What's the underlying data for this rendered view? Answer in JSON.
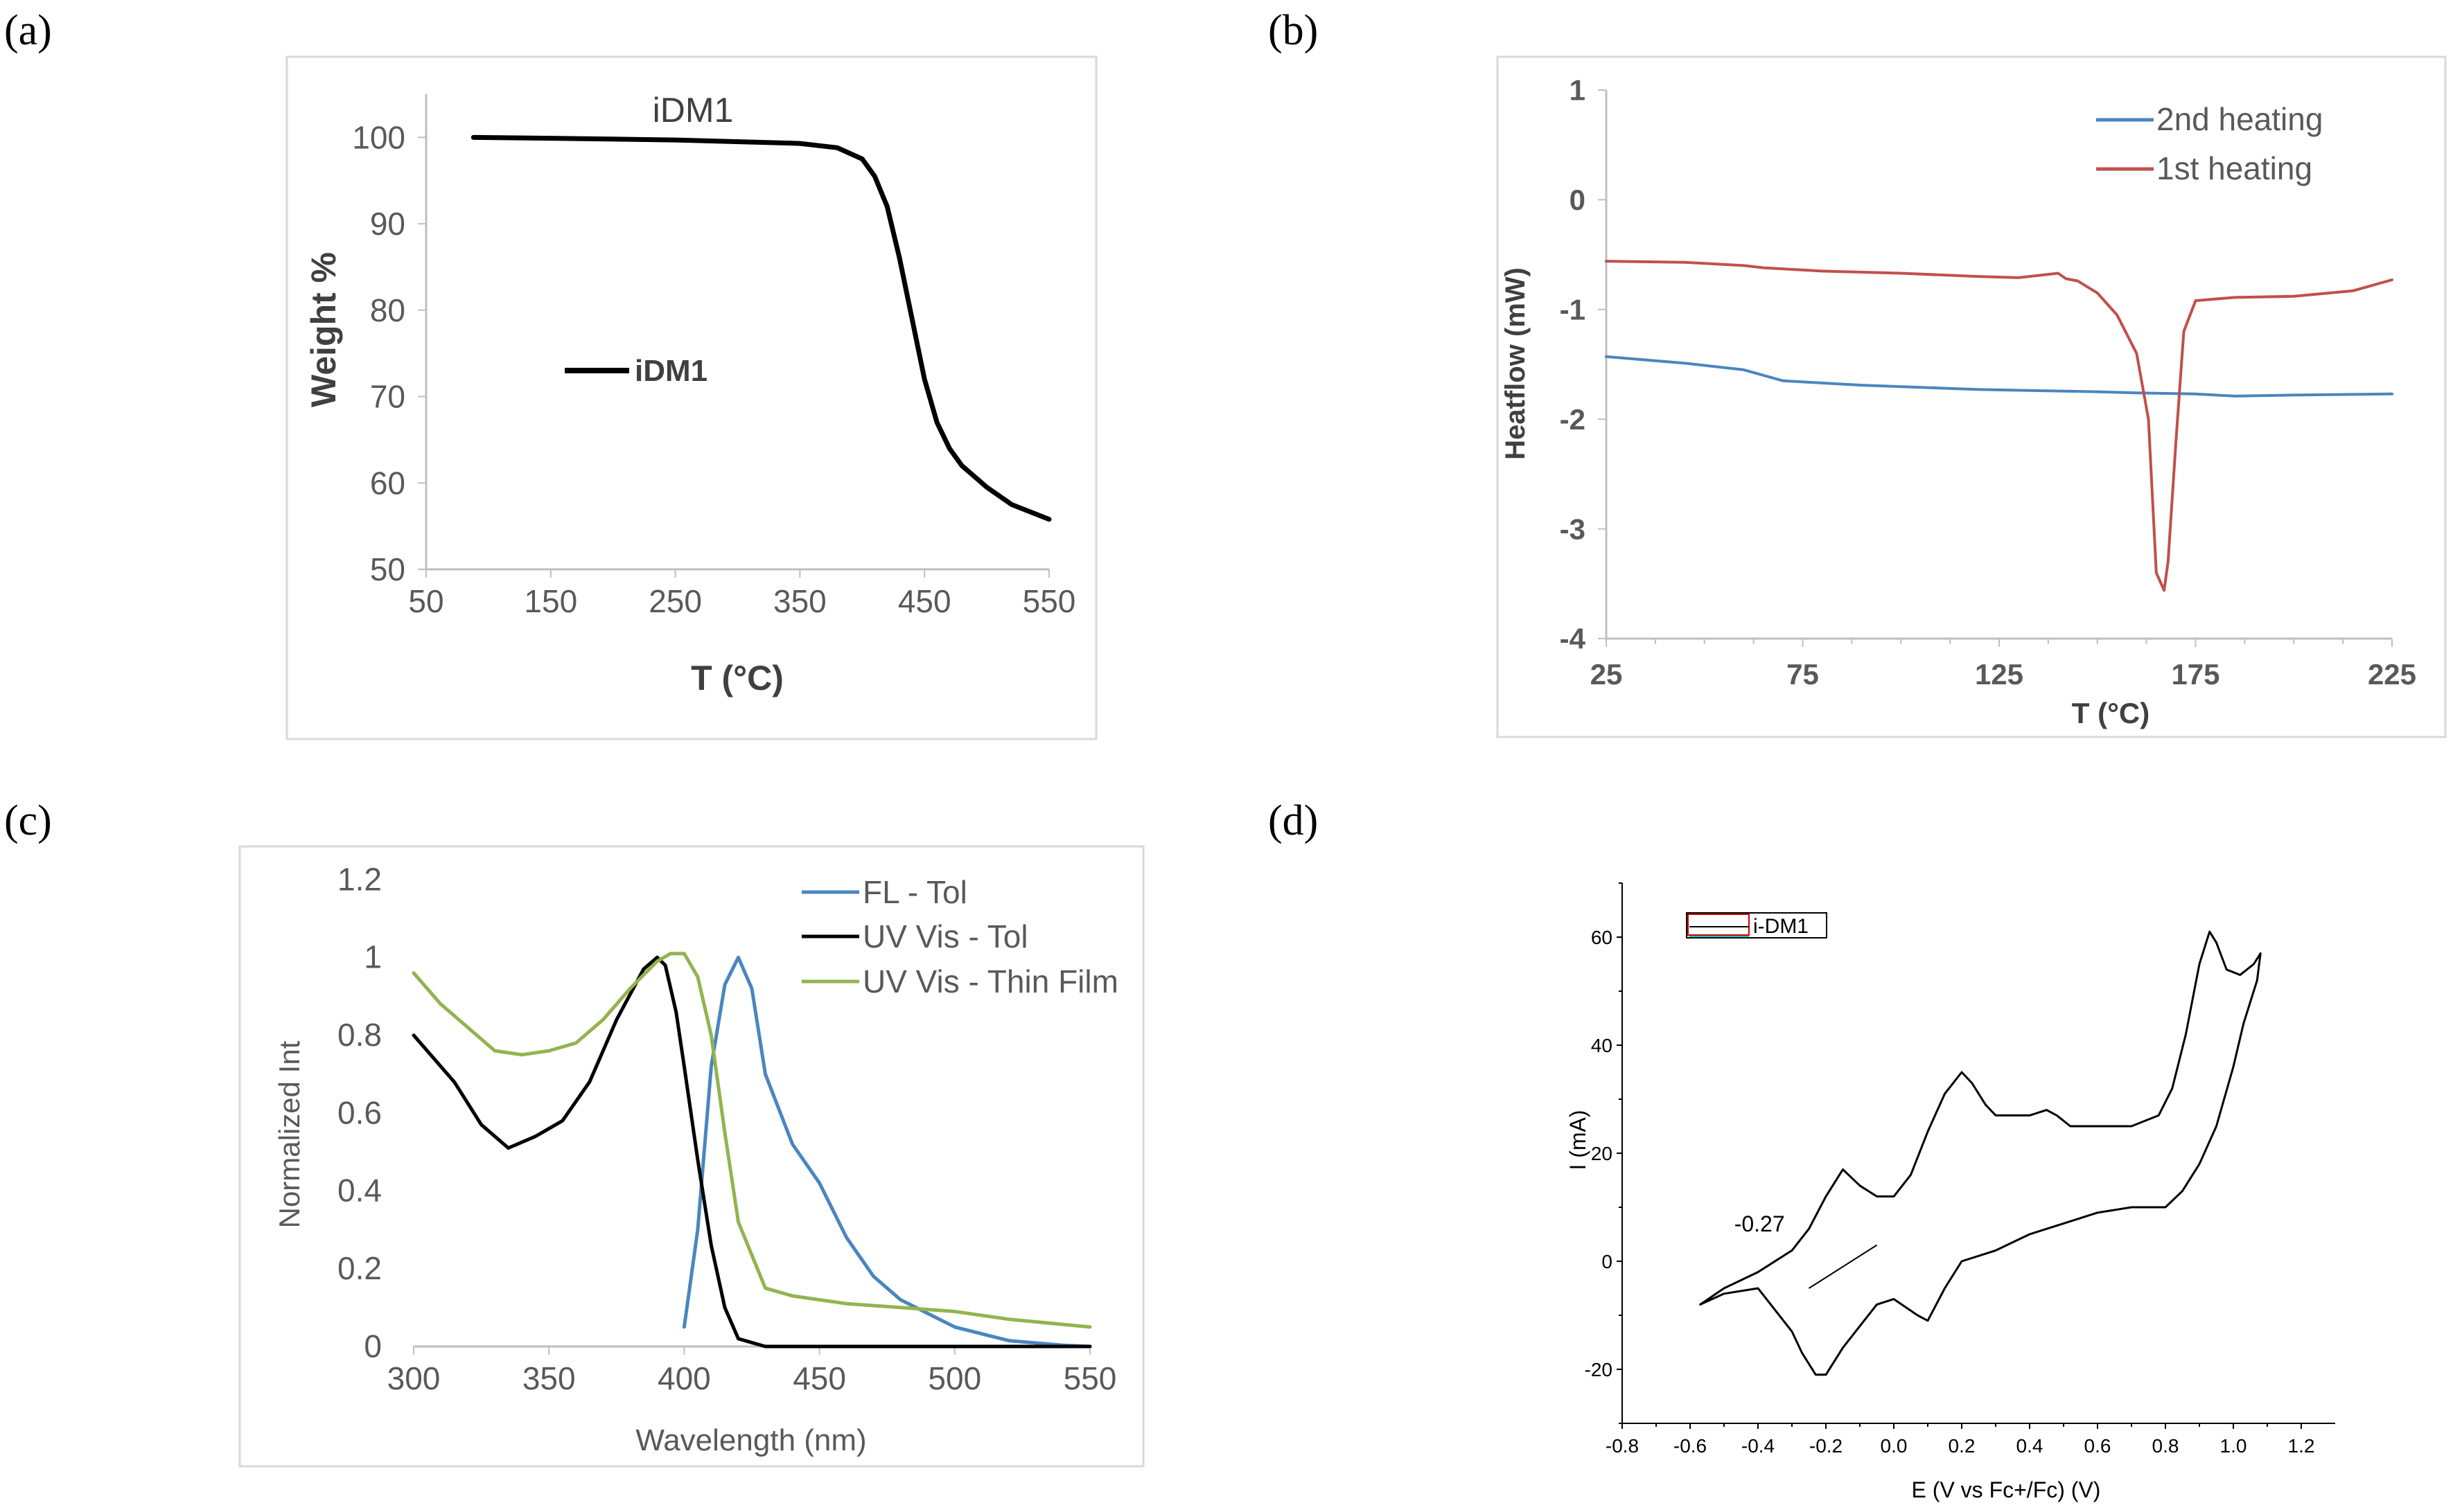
{
  "panels": {
    "a": {
      "label": "(a)"
    },
    "b": {
      "label": "(b)"
    },
    "c": {
      "label": "(c)"
    },
    "d": {
      "label": "(d)"
    }
  },
  "chart_data": [
    {
      "id": "a",
      "type": "line",
      "title": "iDM1",
      "xlabel": "T (°C)",
      "ylabel": "Weight %",
      "xlim": [
        50,
        550
      ],
      "ylim": [
        50,
        105
      ],
      "xticks": [
        50,
        150,
        250,
        350,
        450,
        550
      ],
      "yticks": [
        50,
        60,
        70,
        80,
        90,
        100
      ],
      "xtick_labels": [
        "50",
        "150",
        "250",
        "350",
        "450",
        "550"
      ],
      "ytick_labels": [
        "50",
        "60",
        "70",
        "80",
        "90",
        "100"
      ],
      "legend": [
        "iDM1"
      ],
      "colors": [
        "#000000"
      ],
      "series": [
        {
          "name": "iDM1",
          "x": [
            88,
            150,
            250,
            350,
            380,
            400,
            410,
            420,
            430,
            440,
            450,
            460,
            470,
            480,
            500,
            520,
            550
          ],
          "y": [
            100,
            99.9,
            99.7,
            99.3,
            98.8,
            97.5,
            95.5,
            92,
            86,
            79,
            72,
            67,
            64,
            62,
            59.5,
            57.5,
            55.8
          ]
        }
      ]
    },
    {
      "id": "b",
      "type": "line",
      "xlabel": "T (°C)",
      "ylabel": "Heatflow (mW)",
      "xlim": [
        25,
        225
      ],
      "ylim": [
        -4,
        1
      ],
      "xticks": [
        25,
        75,
        125,
        175,
        225
      ],
      "yticks": [
        1,
        0,
        -1,
        -2,
        -3,
        -4
      ],
      "xtick_labels": [
        "25",
        "75",
        "125",
        "175",
        "225"
      ],
      "ytick_labels": [
        "1",
        "0",
        "-1",
        "-2",
        "-3",
        "-4"
      ],
      "legend": [
        "2nd heating",
        "1st heating"
      ],
      "colors": [
        "#4a86bf",
        "#c0504d"
      ],
      "series": [
        {
          "name": "2nd heating",
          "x": [
            25,
            45,
            60,
            63,
            70,
            90,
            120,
            150,
            160,
            175,
            185,
            200,
            225
          ],
          "y": [
            -1.43,
            -1.49,
            -1.55,
            -1.58,
            -1.65,
            -1.69,
            -1.73,
            -1.75,
            -1.76,
            -1.77,
            -1.79,
            -1.78,
            -1.77
          ]
        },
        {
          "name": "1st heating",
          "x": [
            25,
            45,
            60,
            65,
            80,
            100,
            120,
            130,
            140,
            142,
            145,
            150,
            155,
            160,
            163,
            165,
            167,
            168,
            170,
            172,
            175,
            185,
            200,
            215,
            225
          ],
          "y": [
            -0.56,
            -0.57,
            -0.6,
            -0.62,
            -0.65,
            -0.67,
            -0.7,
            -0.71,
            -0.67,
            -0.72,
            -0.74,
            -0.85,
            -1.05,
            -1.4,
            -2.0,
            -3.4,
            -3.56,
            -3.3,
            -2.2,
            -1.2,
            -0.92,
            -0.89,
            -0.88,
            -0.83,
            -0.73
          ]
        }
      ]
    },
    {
      "id": "c",
      "type": "line",
      "xlabel": "Wavelength (nm)",
      "ylabel": "Normalized Int",
      "xlim": [
        300,
        550
      ],
      "ylim": [
        0,
        1.2
      ],
      "xticks": [
        300,
        350,
        400,
        450,
        500,
        550
      ],
      "yticks": [
        0,
        0.2,
        0.4,
        0.6,
        0.8,
        1,
        1.2
      ],
      "xtick_labels": [
        "300",
        "350",
        "400",
        "450",
        "500",
        "550"
      ],
      "ytick_labels": [
        "0",
        "0.2",
        "0.4",
        "0.6",
        "0.8",
        "1",
        "1.2"
      ],
      "legend": [
        "FL - Tol",
        "UV Vis - Tol",
        "UV Vis - Thin Film"
      ],
      "colors": [
        "#4a86bf",
        "#000000",
        "#92b450"
      ],
      "series": [
        {
          "name": "FL - Tol",
          "x": [
            400,
            405,
            410,
            415,
            420,
            425,
            430,
            440,
            450,
            460,
            470,
            480,
            500,
            520,
            540,
            550
          ],
          "y": [
            0.05,
            0.3,
            0.72,
            0.93,
            1.0,
            0.92,
            0.7,
            0.52,
            0.42,
            0.28,
            0.18,
            0.12,
            0.05,
            0.015,
            0.003,
            0.0
          ]
        },
        {
          "name": "UV Vis - Tol",
          "x": [
            300,
            315,
            325,
            335,
            345,
            355,
            365,
            375,
            385,
            390,
            393,
            397,
            400,
            405,
            410,
            415,
            420,
            430,
            450,
            550
          ],
          "y": [
            0.8,
            0.68,
            0.57,
            0.51,
            0.54,
            0.58,
            0.68,
            0.84,
            0.97,
            1.0,
            0.98,
            0.86,
            0.72,
            0.48,
            0.26,
            0.1,
            0.02,
            0.0,
            0.0,
            0.0
          ]
        },
        {
          "name": "UV Vis - Thin Film",
          "x": [
            300,
            310,
            320,
            330,
            340,
            350,
            360,
            370,
            380,
            390,
            395,
            400,
            405,
            410,
            415,
            420,
            430,
            440,
            460,
            480,
            500,
            520,
            550
          ],
          "y": [
            0.96,
            0.88,
            0.82,
            0.76,
            0.75,
            0.76,
            0.78,
            0.84,
            0.92,
            0.99,
            1.01,
            1.01,
            0.95,
            0.8,
            0.55,
            0.32,
            0.15,
            0.13,
            0.11,
            0.1,
            0.09,
            0.07,
            0.05
          ]
        }
      ]
    },
    {
      "id": "d",
      "type": "line",
      "xlabel": "E (V vs Fc+/Fc) (V)",
      "ylabel": "I (mA)",
      "xlim": [
        -0.8,
        1.3
      ],
      "ylim": [
        -30,
        70
      ],
      "xticks": [
        -0.8,
        -0.6,
        -0.4,
        -0.2,
        0.0,
        0.2,
        0.4,
        0.6,
        0.8,
        1.0,
        1.2
      ],
      "yticks": [
        -20,
        0,
        20,
        40,
        60
      ],
      "xtick_labels": [
        "-0.8",
        "-0.6",
        "-0.4",
        "-0.2",
        "0.0",
        "0.2",
        "0.4",
        "0.6",
        "0.8",
        "1.0",
        "1.2"
      ],
      "ytick_labels": [
        "-20",
        "0",
        "20",
        "40",
        "60"
      ],
      "legend": [
        "i-DM1"
      ],
      "colors": [
        "#000000"
      ],
      "annotation": {
        "text": "-0.27",
        "x": -0.25,
        "y": 3
      },
      "tangent": {
        "x": [
          -0.25,
          -0.05
        ],
        "y": [
          -5,
          3
        ]
      },
      "series": [
        {
          "name": "i-DM1",
          "x": [
            -0.57,
            -0.5,
            -0.4,
            -0.3,
            -0.25,
            -0.2,
            -0.15,
            -0.1,
            -0.05,
            0.0,
            0.05,
            0.1,
            0.15,
            0.2,
            0.23,
            0.27,
            0.3,
            0.35,
            0.4,
            0.45,
            0.48,
            0.52,
            0.6,
            0.7,
            0.78,
            0.82,
            0.86,
            0.9,
            0.93,
            0.95,
            0.98,
            1.02,
            1.06,
            1.08,
            1.07,
            1.03,
            1.0,
            0.95,
            0.9,
            0.85,
            0.8,
            0.7,
            0.6,
            0.5,
            0.4,
            0.3,
            0.2,
            0.15,
            0.1,
            0.07,
            0.0,
            -0.05,
            -0.1,
            -0.15,
            -0.2,
            -0.23,
            -0.27,
            -0.3,
            -0.35,
            -0.4,
            -0.5,
            -0.57
          ],
          "y": [
            -8,
            -5,
            -2,
            2,
            6,
            12,
            17,
            14,
            12,
            12,
            16,
            24,
            31,
            35,
            33,
            29,
            27,
            27,
            27,
            28,
            27,
            25,
            25,
            25,
            27,
            32,
            42,
            55,
            61,
            59,
            54,
            53,
            55,
            57,
            52,
            44,
            36,
            25,
            18,
            13,
            10,
            10,
            9,
            7,
            5,
            2,
            0,
            -5,
            -11,
            -10,
            -7,
            -8,
            -12,
            -16,
            -21,
            -21,
            -17,
            -13,
            -9,
            -5,
            -6,
            -8
          ]
        }
      ]
    }
  ]
}
